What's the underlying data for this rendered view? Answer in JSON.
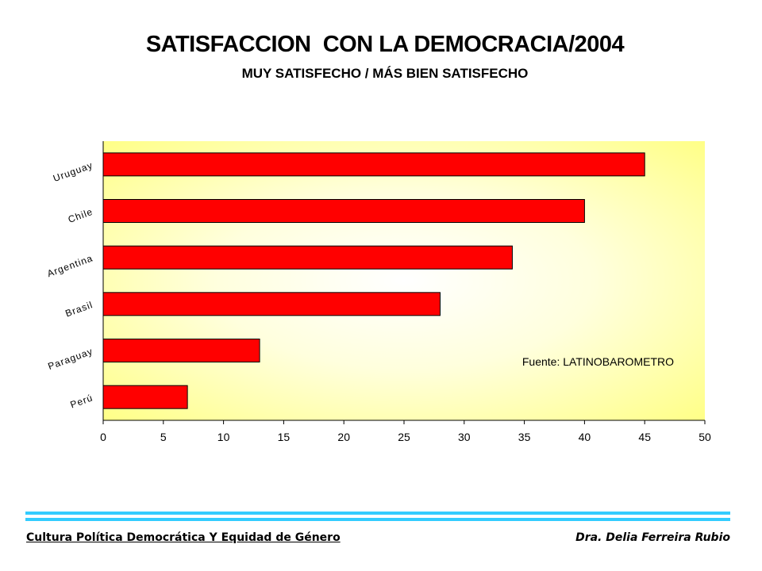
{
  "header": {
    "title": "SATISFACCION  CON LA DEMOCRACIA/2004",
    "subtitle": "MUY SATISFECHO / MÁS BIEN SATISFECHO"
  },
  "chart_data": {
    "type": "bar",
    "orientation": "horizontal",
    "categories": [
      "Uruguay",
      "Chile",
      "Argentina",
      "Brasil",
      "Paraguay",
      "Perú"
    ],
    "values": [
      45,
      40,
      34,
      28,
      13,
      7
    ],
    "title": "SATISFACCION  CON LA DEMOCRACIA/2004",
    "subtitle": "MUY SATISFECHO / MÁS BIEN SATISFECHO",
    "xlim": [
      0,
      50
    ],
    "xticks": [
      0,
      5,
      10,
      15,
      20,
      25,
      30,
      35,
      40,
      45,
      50
    ],
    "annotation": "Fuente: LATINOBAROMETRO",
    "grid": false,
    "bar_color": "#ff0000",
    "plot_background": "#ffff99"
  },
  "footer": {
    "left": "Cultura Política Democrática Y Equidad de Género",
    "right": "Dra. Delia Ferreira Rubio"
  }
}
